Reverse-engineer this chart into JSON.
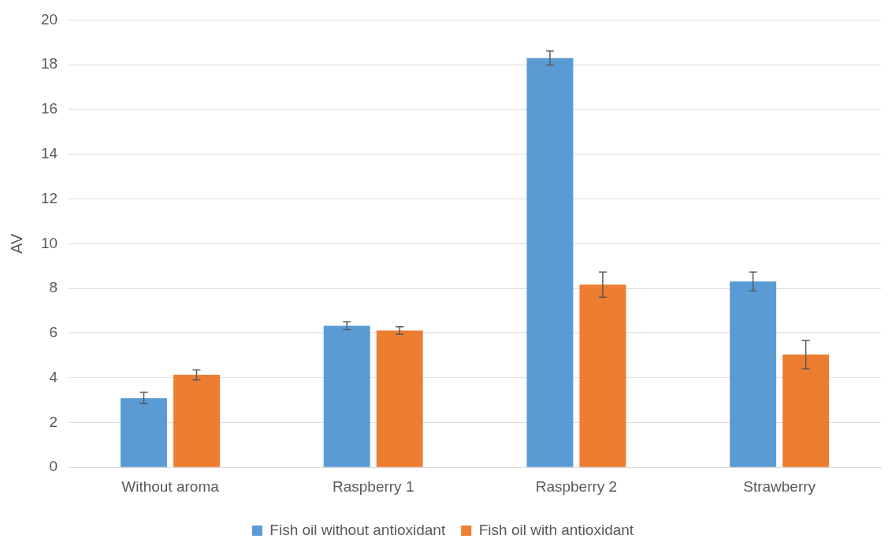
{
  "chart_data": {
    "type": "bar",
    "ylabel": "AV",
    "categories": [
      "Without aroma",
      "Raspberry 1",
      "Raspberry 2",
      "Strawberry"
    ],
    "series": [
      {
        "name": "Fish oil without antioxidant",
        "color": "#5b9bd5",
        "values": [
          3.1,
          6.33,
          18.3,
          8.31
        ],
        "errors": [
          0.25,
          0.18,
          0.31,
          0.42
        ]
      },
      {
        "name": "Fish oil with antioxidant",
        "color": "#ed7d31",
        "values": [
          4.14,
          6.12,
          8.17,
          5.04
        ],
        "errors": [
          0.22,
          0.17,
          0.56,
          0.63
        ]
      }
    ],
    "ylim": [
      0,
      20
    ],
    "yticks": [
      0,
      2,
      4,
      6,
      8,
      10,
      12,
      14,
      16,
      18,
      20
    ],
    "grid": "y",
    "legend": "bottom"
  }
}
